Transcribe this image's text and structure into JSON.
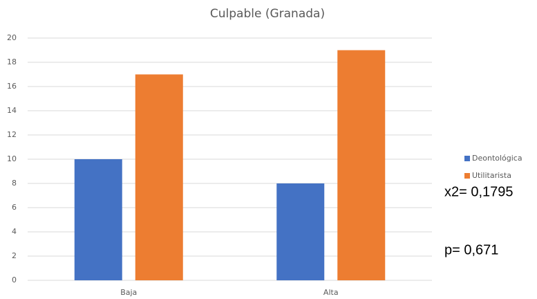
{
  "chart_data": {
    "type": "bar",
    "title": "Culpable (Granada)",
    "categories": [
      "Baja",
      "Alta"
    ],
    "series": [
      {
        "name": "Deontológica",
        "color": "#4472c4",
        "values": [
          10,
          8
        ]
      },
      {
        "name": "Utilitarista",
        "color": "#ed7d31",
        "values": [
          17,
          19
        ]
      }
    ],
    "ylim": [
      0,
      20
    ],
    "yticks": [
      0,
      2,
      4,
      6,
      8,
      10,
      12,
      14,
      16,
      18,
      20
    ],
    "grid": true,
    "legend": "right",
    "annotations": [
      "x2= 0,1795",
      "p= 0,671"
    ]
  }
}
